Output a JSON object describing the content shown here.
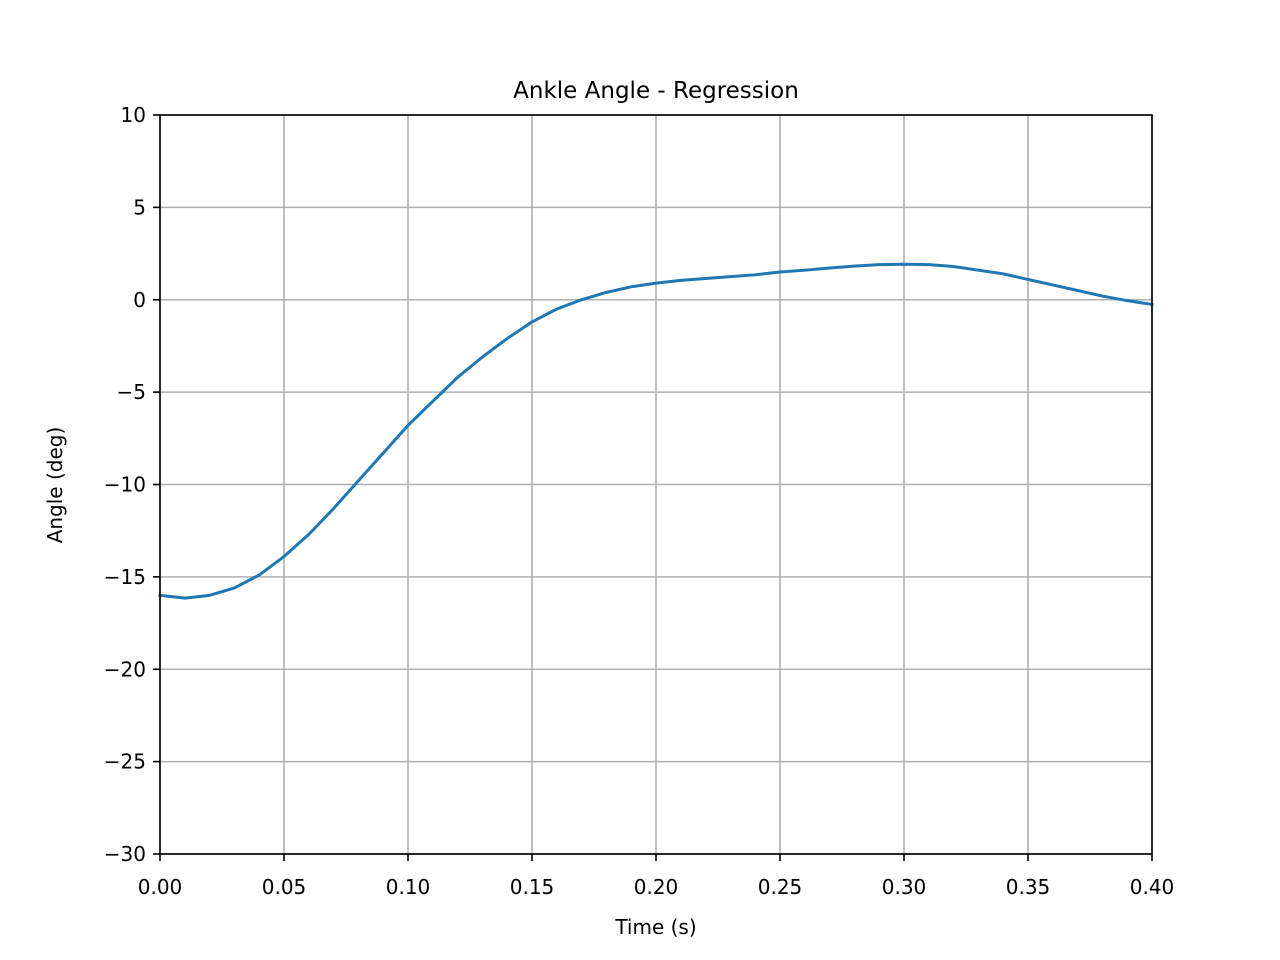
{
  "chart_data": {
    "type": "line",
    "title": "Ankle Angle - Regression",
    "xlabel": "Time (s)",
    "ylabel": "Angle (deg)",
    "xlim": [
      0.0,
      0.4
    ],
    "ylim": [
      -30,
      10
    ],
    "grid": true,
    "x_ticks": [
      "0.00",
      "0.05",
      "0.10",
      "0.15",
      "0.20",
      "0.25",
      "0.30",
      "0.35",
      "0.40"
    ],
    "y_ticks": [
      "10",
      "5",
      "0",
      "−5",
      "−10",
      "−15",
      "−20",
      "−25",
      "−30"
    ],
    "series": [
      {
        "color": "#1f77b4",
        "x": [
          0.0,
          0.01,
          0.02,
          0.03,
          0.04,
          0.05,
          0.06,
          0.07,
          0.08,
          0.09,
          0.1,
          0.11,
          0.12,
          0.13,
          0.14,
          0.15,
          0.16,
          0.17,
          0.18,
          0.19,
          0.2,
          0.21,
          0.22,
          0.23,
          0.24,
          0.25,
          0.26,
          0.27,
          0.28,
          0.29,
          0.3,
          0.31,
          0.32,
          0.33,
          0.34,
          0.35,
          0.36,
          0.37,
          0.38,
          0.39,
          0.4
        ],
        "y": [
          -16.0,
          -16.15,
          -16.0,
          -15.6,
          -14.9,
          -13.9,
          -12.7,
          -11.3,
          -9.8,
          -8.3,
          -6.8,
          -5.5,
          -4.2,
          -3.1,
          -2.1,
          -1.2,
          -0.5,
          0.0,
          0.4,
          0.7,
          0.9,
          1.05,
          1.15,
          1.25,
          1.35,
          1.5,
          1.6,
          1.72,
          1.82,
          1.9,
          1.92,
          1.9,
          1.8,
          1.6,
          1.4,
          1.1,
          0.8,
          0.5,
          0.2,
          -0.05,
          -0.25
        ]
      }
    ]
  }
}
